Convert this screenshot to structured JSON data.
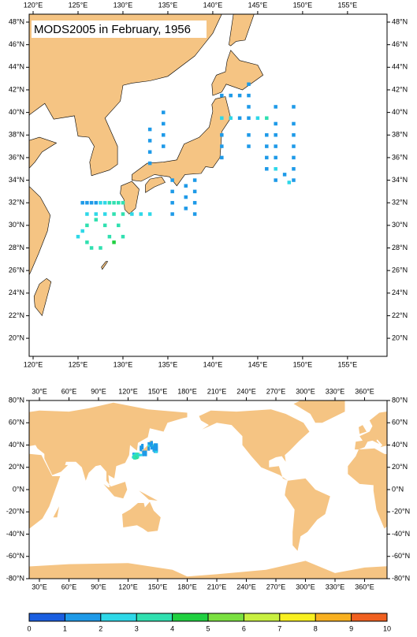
{
  "title": "MODS2005 in February, 1956",
  "regional_map": {
    "xlim": [
      119.56,
      159.4
    ],
    "ylim": [
      18.4,
      48.7
    ],
    "xticks": [
      {
        "value": 120,
        "label": "120°E"
      },
      {
        "value": 125,
        "label": "125°E"
      },
      {
        "value": 130,
        "label": "130°E"
      },
      {
        "value": 135,
        "label": "135°E"
      },
      {
        "value": 140,
        "label": "140°E"
      },
      {
        "value": 145,
        "label": "145°E"
      },
      {
        "value": 150,
        "label": "150°E"
      },
      {
        "value": 155,
        "label": "155°E"
      }
    ],
    "yticks": [
      {
        "value": 20,
        "label": "20°N"
      },
      {
        "value": 22,
        "label": "22°N"
      },
      {
        "value": 24,
        "label": "24°N"
      },
      {
        "value": 26,
        "label": "26°N"
      },
      {
        "value": 28,
        "label": "28°N"
      },
      {
        "value": 30,
        "label": "30°N"
      },
      {
        "value": 32,
        "label": "32°N"
      },
      {
        "value": 34,
        "label": "34°N"
      },
      {
        "value": 36,
        "label": "36°N"
      },
      {
        "value": 38,
        "label": "38°N"
      },
      {
        "value": 40,
        "label": "40°N"
      },
      {
        "value": 42,
        "label": "42°N"
      },
      {
        "value": 44,
        "label": "44°N"
      },
      {
        "value": 46,
        "label": "46°N"
      },
      {
        "value": 48,
        "label": "48°N"
      }
    ]
  },
  "global_map": {
    "xlim": [
      19.6,
      382.8
    ],
    "ylim": [
      -80,
      80
    ],
    "xticks": [
      {
        "value": 30,
        "label": "30°E"
      },
      {
        "value": 60,
        "label": "60°E"
      },
      {
        "value": 90,
        "label": "90°E"
      },
      {
        "value": 120,
        "label": "120°E"
      },
      {
        "value": 150,
        "label": "150°E"
      },
      {
        "value": 180,
        "label": "180°E"
      },
      {
        "value": 210,
        "label": "210°E"
      },
      {
        "value": 240,
        "label": "240°E"
      },
      {
        "value": 270,
        "label": "270°E"
      },
      {
        "value": 300,
        "label": "300°E"
      },
      {
        "value": 330,
        "label": "330°E"
      },
      {
        "value": 360,
        "label": "360°E"
      }
    ],
    "yticks": [
      {
        "value": -80,
        "label": "-80°N"
      },
      {
        "value": -60,
        "label": "-60°N"
      },
      {
        "value": -40,
        "label": "-40°N"
      },
      {
        "value": -20,
        "label": "-20°N"
      },
      {
        "value": 0,
        "label": "0°N"
      },
      {
        "value": 20,
        "label": "20°N"
      },
      {
        "value": 40,
        "label": "40°N"
      },
      {
        "value": 60,
        "label": "60°N"
      },
      {
        "value": 80,
        "label": "80°N"
      }
    ]
  },
  "observations": [
    {
      "lon": 125.5,
      "lat": 32,
      "value": 1
    },
    {
      "lon": 126,
      "lat": 32,
      "value": 1
    },
    {
      "lon": 126.5,
      "lat": 32,
      "value": 1
    },
    {
      "lon": 127,
      "lat": 32,
      "value": 1
    },
    {
      "lon": 127.5,
      "lat": 32,
      "value": 2
    },
    {
      "lon": 128,
      "lat": 32,
      "value": 2
    },
    {
      "lon": 128.5,
      "lat": 32,
      "value": 3
    },
    {
      "lon": 129,
      "lat": 32,
      "value": 3
    },
    {
      "lon": 129.5,
      "lat": 32,
      "value": 3
    },
    {
      "lon": 130,
      "lat": 32,
      "value": 3
    },
    {
      "lon": 126,
      "lat": 31,
      "value": 2
    },
    {
      "lon": 127,
      "lat": 31,
      "value": 2
    },
    {
      "lon": 128,
      "lat": 31,
      "value": 2
    },
    {
      "lon": 129,
      "lat": 31,
      "value": 3
    },
    {
      "lon": 130,
      "lat": 31,
      "value": 3
    },
    {
      "lon": 131,
      "lat": 31,
      "value": 2
    },
    {
      "lon": 132,
      "lat": 31,
      "value": 2
    },
    {
      "lon": 133,
      "lat": 31,
      "value": 2
    },
    {
      "lon": 125.5,
      "lat": 29.5,
      "value": 2
    },
    {
      "lon": 125,
      "lat": 29,
      "value": 2
    },
    {
      "lon": 126,
      "lat": 30,
      "value": 3
    },
    {
      "lon": 127,
      "lat": 30.5,
      "value": 3
    },
    {
      "lon": 128,
      "lat": 30,
      "value": 3
    },
    {
      "lon": 128.5,
      "lat": 29,
      "value": 3
    },
    {
      "lon": 129,
      "lat": 28.5,
      "value": 4
    },
    {
      "lon": 130,
      "lat": 29,
      "value": 3
    },
    {
      "lon": 129.5,
      "lat": 30,
      "value": 3
    },
    {
      "lon": 126.5,
      "lat": 28,
      "value": 3
    },
    {
      "lon": 127.5,
      "lat": 28,
      "value": 3
    },
    {
      "lon": 126,
      "lat": 28.5,
      "value": 3
    },
    {
      "lon": 135.5,
      "lat": 31,
      "value": 1
    },
    {
      "lon": 135.5,
      "lat": 32,
      "value": 1
    },
    {
      "lon": 135.5,
      "lat": 33,
      "value": 1
    },
    {
      "lon": 135.5,
      "lat": 34,
      "value": 1
    },
    {
      "lon": 137,
      "lat": 31.5,
      "value": 1
    },
    {
      "lon": 137,
      "lat": 32.5,
      "value": 1
    },
    {
      "lon": 137,
      "lat": 33.5,
      "value": 1
    },
    {
      "lon": 138,
      "lat": 31,
      "value": 1
    },
    {
      "lon": 138,
      "lat": 32,
      "value": 1
    },
    {
      "lon": 138,
      "lat": 33,
      "value": 1
    },
    {
      "lon": 138,
      "lat": 34,
      "value": 1
    },
    {
      "lon": 133,
      "lat": 35.5,
      "value": 1
    },
    {
      "lon": 133,
      "lat": 36.5,
      "value": 1
    },
    {
      "lon": 133,
      "lat": 37.5,
      "value": 1
    },
    {
      "lon": 133,
      "lat": 38.5,
      "value": 1
    },
    {
      "lon": 134.5,
      "lat": 37,
      "value": 1
    },
    {
      "lon": 134.5,
      "lat": 38,
      "value": 1
    },
    {
      "lon": 134.5,
      "lat": 39,
      "value": 1
    },
    {
      "lon": 134.5,
      "lat": 40,
      "value": 1
    },
    {
      "lon": 141,
      "lat": 36,
      "value": 1
    },
    {
      "lon": 141,
      "lat": 37,
      "value": 1
    },
    {
      "lon": 141,
      "lat": 38,
      "value": 1
    },
    {
      "lon": 141,
      "lat": 39.5,
      "value": 2
    },
    {
      "lon": 142,
      "lat": 39.5,
      "value": 2
    },
    {
      "lon": 143,
      "lat": 39.5,
      "value": 1
    },
    {
      "lon": 144,
      "lat": 39.5,
      "value": 1
    },
    {
      "lon": 145,
      "lat": 39.5,
      "value": 2
    },
    {
      "lon": 146,
      "lat": 39.5,
      "value": 3
    },
    {
      "lon": 141,
      "lat": 41.5,
      "value": 1
    },
    {
      "lon": 142,
      "lat": 41.5,
      "value": 1
    },
    {
      "lon": 143,
      "lat": 41.5,
      "value": 1
    },
    {
      "lon": 144,
      "lat": 41.5,
      "value": 1
    },
    {
      "lon": 144,
      "lat": 37,
      "value": 1
    },
    {
      "lon": 144,
      "lat": 38,
      "value": 1
    },
    {
      "lon": 144,
      "lat": 40.5,
      "value": 1
    },
    {
      "lon": 144,
      "lat": 42.5,
      "value": 1
    },
    {
      "lon": 146,
      "lat": 35,
      "value": 1
    },
    {
      "lon": 146,
      "lat": 36,
      "value": 1
    },
    {
      "lon": 146,
      "lat": 37,
      "value": 1
    },
    {
      "lon": 146,
      "lat": 38,
      "value": 1
    },
    {
      "lon": 147,
      "lat": 34,
      "value": 1
    },
    {
      "lon": 147,
      "lat": 35,
      "value": 2
    },
    {
      "lon": 147,
      "lat": 36,
      "value": 1
    },
    {
      "lon": 147,
      "lat": 37,
      "value": 1
    },
    {
      "lon": 147,
      "lat": 38,
      "value": 1
    },
    {
      "lon": 147,
      "lat": 39,
      "value": 1
    },
    {
      "lon": 147,
      "lat": 40.5,
      "value": 1
    },
    {
      "lon": 149,
      "lat": 34,
      "value": 1
    },
    {
      "lon": 149,
      "lat": 35,
      "value": 1
    },
    {
      "lon": 149,
      "lat": 36,
      "value": 1
    },
    {
      "lon": 149,
      "lat": 37,
      "value": 1
    },
    {
      "lon": 149,
      "lat": 38,
      "value": 1
    },
    {
      "lon": 149,
      "lat": 39,
      "value": 1
    },
    {
      "lon": 149,
      "lat": 40.5,
      "value": 1
    },
    {
      "lon": 148,
      "lat": 34.5,
      "value": 1
    },
    {
      "lon": 148.5,
      "lat": 33.8,
      "value": 2
    }
  ],
  "colorbar": {
    "levels": [
      0,
      1,
      2,
      3,
      4,
      5,
      6,
      7,
      8,
      9,
      10
    ],
    "colors": [
      "#1a5ee0",
      "#1e9ae8",
      "#2ed8e8",
      "#30e0b0",
      "#20d040",
      "#7ae040",
      "#c8f040",
      "#f8f020",
      "#f8b020",
      "#f06020"
    ]
  }
}
